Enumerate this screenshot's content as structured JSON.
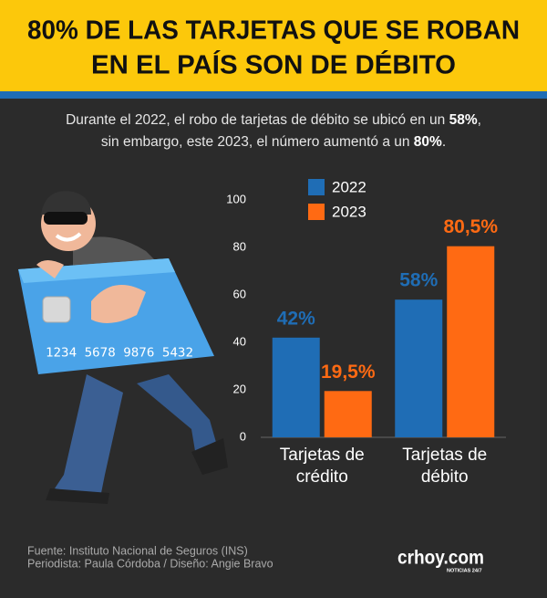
{
  "header": {
    "title_lines": [
      "80% DE LAS TARJETAS QUE SE ROBAN",
      "EN EL PAÍS SON DE DÉBITO"
    ],
    "subtitle_lines": [
      [
        {
          "text": "Durante el 2022, el robo de tarjetas de débito se ubicó en un "
        },
        {
          "text": "58%",
          "bold": true
        },
        {
          "text": ","
        }
      ],
      [
        {
          "text": "sin embargo, este 2023, el número aumentó a un "
        },
        {
          "text": "80%",
          "bold": true
        },
        {
          "text": "."
        }
      ]
    ]
  },
  "illustration": {
    "card_number": "1234 5678 9876 5432"
  },
  "chart_data": {
    "type": "bar",
    "categories": [
      "Tarjetas de crédito",
      "Tarjetas de débito"
    ],
    "series": [
      {
        "name": "2022",
        "color": "#1f6db5",
        "values": [
          42,
          58
        ],
        "value_labels": [
          "42%",
          "58%"
        ]
      },
      {
        "name": "2023",
        "color": "#ff6a13",
        "values": [
          19.5,
          80.5
        ],
        "value_labels": [
          "19,5%",
          "80,5%"
        ]
      }
    ],
    "ylim": [
      0,
      100
    ],
    "yticks": [
      0,
      20,
      40,
      60,
      80,
      100
    ],
    "grid": false
  },
  "footer": {
    "source": "Fuente: Instituto Nacional de Seguros (INS)",
    "credits": "Periodista: Paula Córdoba / Diseño: Angie Bravo",
    "logo": "crhoy.com",
    "logo_tagline": "NOTICIAS 24/7"
  }
}
